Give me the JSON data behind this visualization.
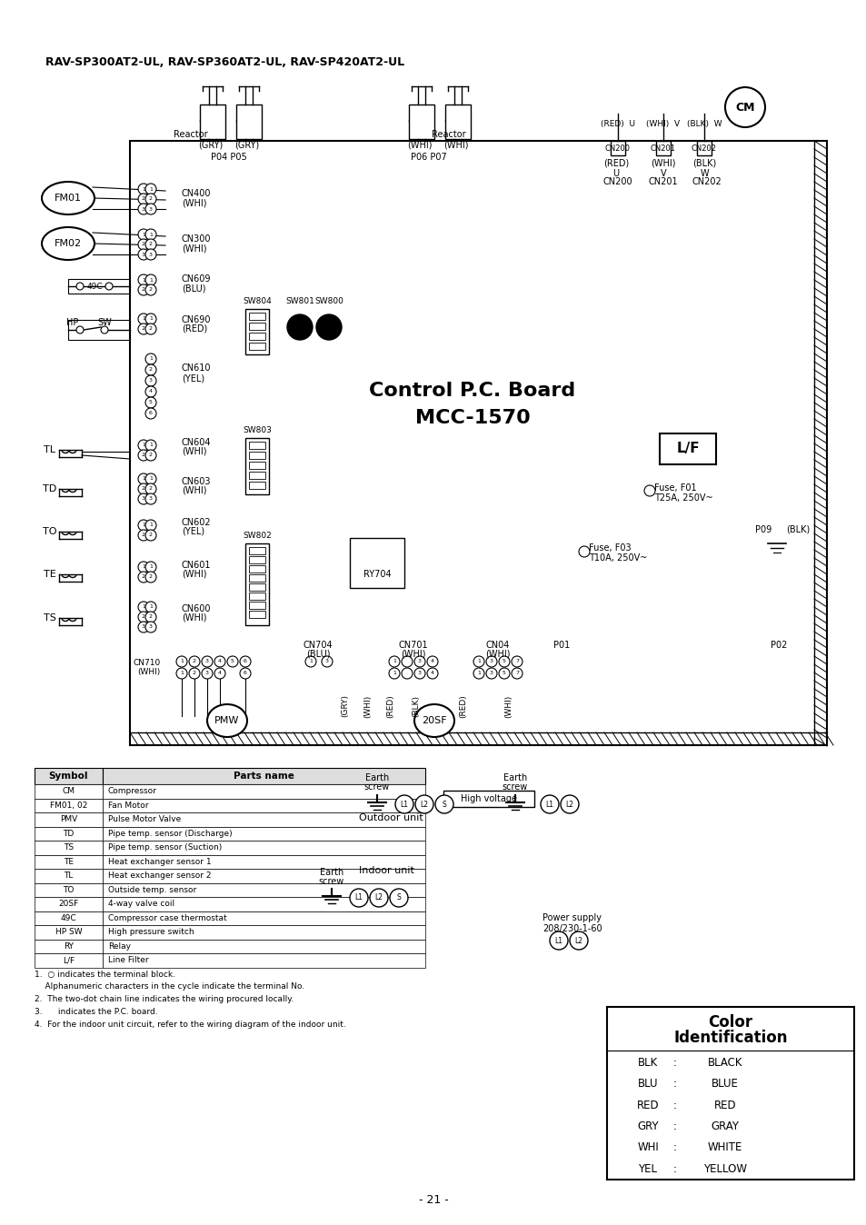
{
  "header": "RAV-SP300AT2-UL, RAV-SP360AT2-UL, RAV-SP420AT2-UL",
  "page_number": "- 21 -",
  "color_id_entries": [
    [
      "BLK",
      "BLACK"
    ],
    [
      "BLU",
      "BLUE"
    ],
    [
      "RED",
      "RED"
    ],
    [
      "GRY",
      "GRAY"
    ],
    [
      "WHI",
      "WHITE"
    ],
    [
      "YEL",
      "YELLOW"
    ]
  ],
  "parts_table_rows": [
    [
      "CM",
      "Compressor"
    ],
    [
      "FM01, 02",
      "Fan Motor"
    ],
    [
      "PMV",
      "Pulse Motor Valve"
    ],
    [
      "TD",
      "Pipe temp. sensor (Discharge)"
    ],
    [
      "TS",
      "Pipe temp. sensor (Suction)"
    ],
    [
      "TE",
      "Heat exchanger sensor 1"
    ],
    [
      "TL",
      "Heat exchanger sensor 2"
    ],
    [
      "TO",
      "Outside temp. sensor"
    ],
    [
      "20SF",
      "4-way valve coil"
    ],
    [
      "49C",
      "Compressor case thermostat"
    ],
    [
      "HP SW",
      "High pressure switch"
    ],
    [
      "RY",
      "Relay"
    ],
    [
      "L/F",
      "Line Filter"
    ]
  ],
  "notes": [
    "1.  ○ indicates the terminal block.",
    "    Alphanumeric characters in the cycle indicate the terminal No.",
    "2.  The two-dot chain line indicates the wiring procured locally.",
    "3.      indicates the P.C. board.",
    "4.  For the indoor unit circuit, refer to the wiring diagram of the indoor unit."
  ]
}
